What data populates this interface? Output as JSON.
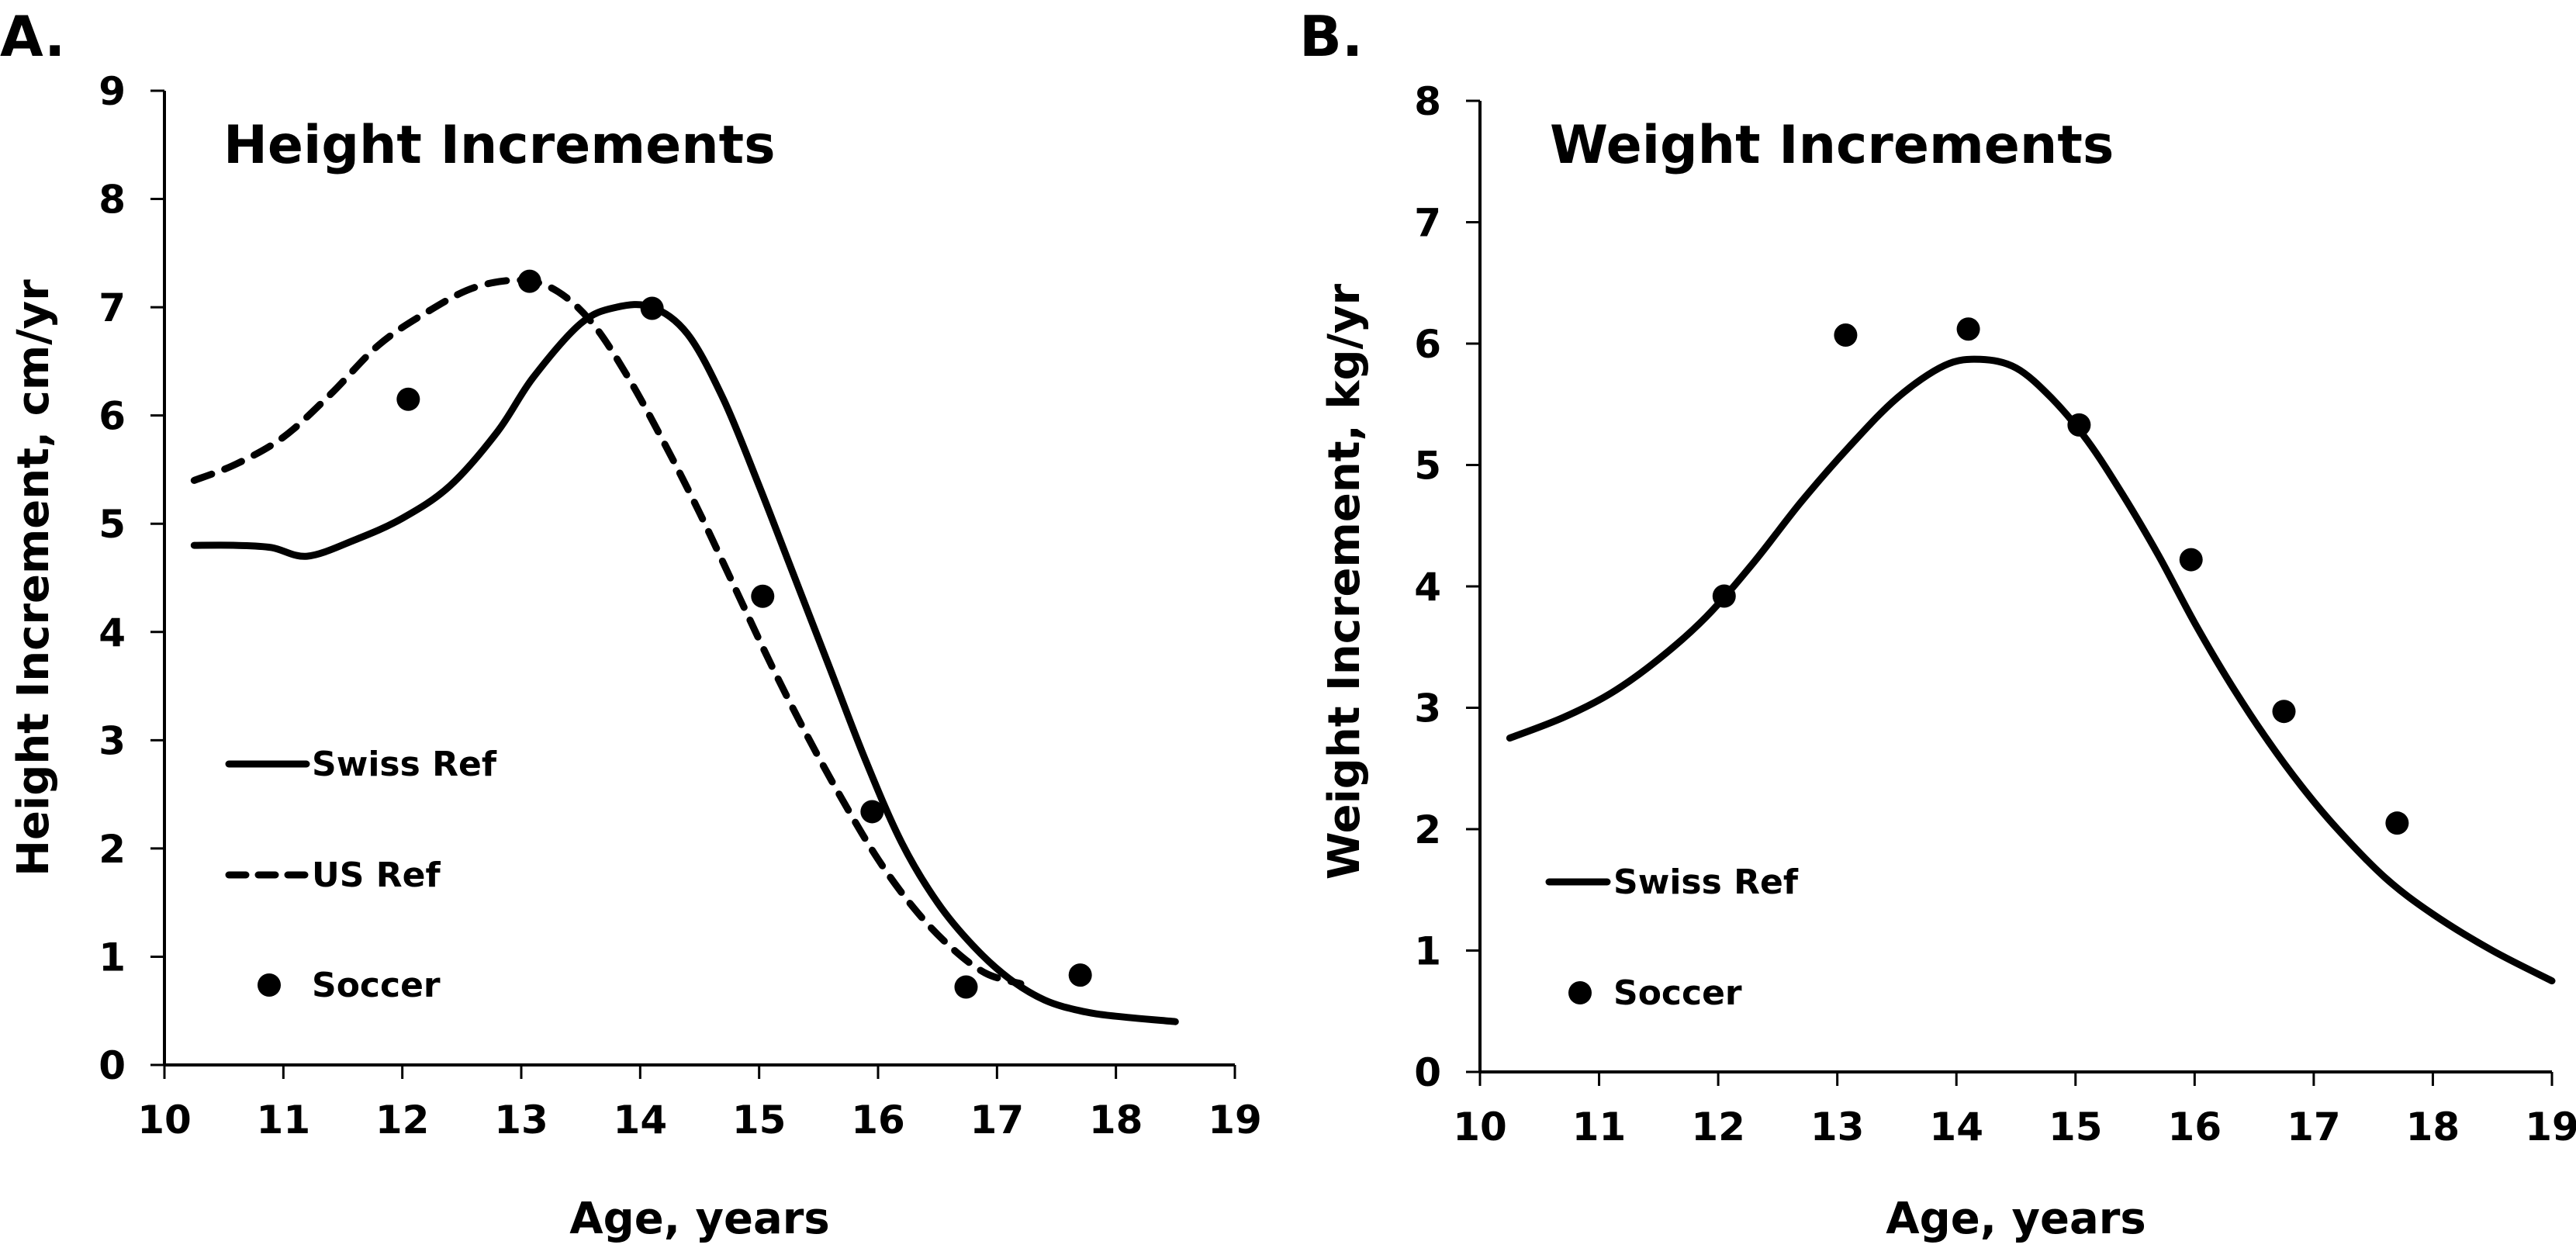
{
  "panels": {
    "a": {
      "letter": "A."
    },
    "b": {
      "letter": "B."
    }
  },
  "chart_data": [
    {
      "type": "line",
      "panel": "A.",
      "title": "Height Increments",
      "xlabel": "Age, years",
      "ylabel": "Height Increment, cm/yr",
      "xlim": [
        10,
        19
      ],
      "ylim": [
        0,
        9
      ],
      "xticks": [
        "10",
        "11",
        "12",
        "13",
        "14",
        "15",
        "16",
        "17",
        "18",
        "19"
      ],
      "yticks": [
        "0",
        "1",
        "2",
        "3",
        "4",
        "5",
        "6",
        "7",
        "8",
        "9"
      ],
      "grid": false,
      "legend_position": "bottom-left",
      "legend": [
        {
          "label": "Swiss Ref",
          "style": "solid-line"
        },
        {
          "label": "US Ref",
          "style": "dashed-line"
        },
        {
          "label": "Soccer",
          "style": "marker"
        }
      ],
      "series": [
        {
          "name": "Swiss Ref",
          "style": "solid",
          "x": [
            10.25,
            10.6,
            10.9,
            11.2,
            11.6,
            12.0,
            12.4,
            12.8,
            13.1,
            13.5,
            13.8,
            14.1,
            14.4,
            14.7,
            15.0,
            15.3,
            15.6,
            15.9,
            16.2,
            16.5,
            16.8,
            17.1,
            17.4,
            17.7,
            18.0,
            18.5
          ],
          "y": [
            4.8,
            4.8,
            4.78,
            4.7,
            4.85,
            5.05,
            5.35,
            5.85,
            6.35,
            6.85,
            7.0,
            7.0,
            6.75,
            6.15,
            5.35,
            4.5,
            3.65,
            2.8,
            2.05,
            1.5,
            1.1,
            0.8,
            0.6,
            0.5,
            0.45,
            0.4
          ]
        },
        {
          "name": "US Ref",
          "style": "dashed",
          "x": [
            10.25,
            10.6,
            11.0,
            11.4,
            11.8,
            12.2,
            12.6,
            13.0,
            13.3,
            13.6,
            13.9,
            14.2,
            14.5,
            14.8,
            15.1,
            15.4,
            15.7,
            16.0,
            16.3,
            16.6,
            16.9,
            17.2
          ],
          "y": [
            5.4,
            5.55,
            5.8,
            6.2,
            6.65,
            6.95,
            7.18,
            7.25,
            7.15,
            6.85,
            6.35,
            5.75,
            5.1,
            4.4,
            3.7,
            3.05,
            2.45,
            1.9,
            1.45,
            1.1,
            0.85,
            0.75
          ]
        },
        {
          "name": "Soccer",
          "style": "markers",
          "x": [
            12.05,
            13.07,
            14.1,
            15.03,
            15.95,
            16.74,
            17.7
          ],
          "y": [
            6.15,
            7.24,
            6.99,
            4.33,
            2.34,
            0.72,
            0.83
          ]
        }
      ]
    },
    {
      "type": "line",
      "panel": "B.",
      "title": "Weight Increments",
      "xlabel": "Age, years",
      "ylabel": "Weight Increment, kg/yr",
      "xlim": [
        10,
        19
      ],
      "ylim": [
        0,
        8
      ],
      "xticks": [
        "10",
        "11",
        "12",
        "13",
        "14",
        "15",
        "16",
        "17",
        "18",
        "19"
      ],
      "yticks": [
        "0",
        "1",
        "2",
        "3",
        "4",
        "5",
        "6",
        "7",
        "8"
      ],
      "grid": false,
      "legend_position": "bottom-left",
      "legend": [
        {
          "label": "Swiss Ref",
          "style": "solid-line"
        },
        {
          "label": "Soccer",
          "style": "marker"
        }
      ],
      "series": [
        {
          "name": "Swiss Ref",
          "style": "solid",
          "x": [
            10.25,
            10.7,
            11.1,
            11.5,
            11.9,
            12.3,
            12.7,
            13.1,
            13.5,
            13.9,
            14.2,
            14.5,
            14.8,
            15.1,
            15.4,
            15.7,
            16.0,
            16.3,
            16.6,
            16.9,
            17.2,
            17.6,
            18.0,
            18.5,
            19.0
          ],
          "y": [
            2.75,
            2.92,
            3.12,
            3.4,
            3.75,
            4.2,
            4.7,
            5.15,
            5.55,
            5.82,
            5.87,
            5.8,
            5.55,
            5.2,
            4.75,
            4.25,
            3.7,
            3.2,
            2.75,
            2.35,
            2.0,
            1.6,
            1.3,
            1.0,
            0.75
          ]
        },
        {
          "name": "Soccer",
          "style": "markers",
          "x": [
            12.05,
            13.07,
            14.1,
            15.03,
            15.97,
            16.75,
            17.7
          ],
          "y": [
            3.92,
            6.07,
            6.12,
            5.33,
            4.22,
            2.97,
            2.05
          ]
        }
      ]
    }
  ]
}
